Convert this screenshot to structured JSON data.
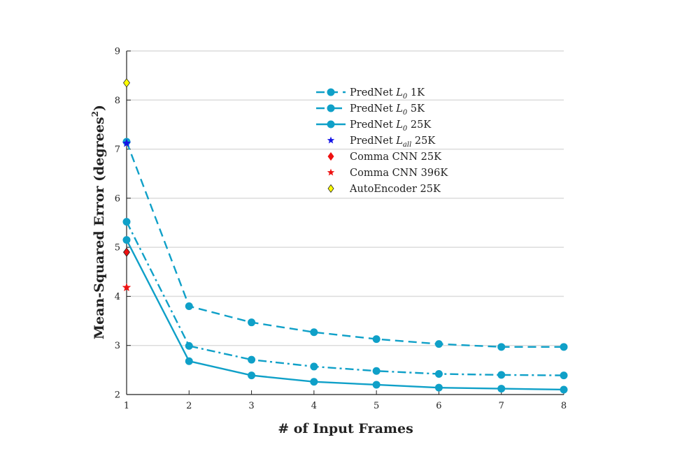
{
  "chart_data": {
    "type": "line",
    "xlabel": "# of Input Frames",
    "ylabel": "Mean-Squared Error (degrees",
    "ylabel_sup": "2",
    "ylabel_close": ")",
    "xlim": [
      1,
      8
    ],
    "ylim": [
      2,
      9
    ],
    "xticks": [
      1,
      2,
      3,
      4,
      5,
      6,
      7,
      8
    ],
    "yticks": [
      2,
      3,
      4,
      5,
      6,
      7,
      8,
      9
    ],
    "grid": "horizontal",
    "legend_position": "top-center",
    "colors": {
      "prednet": "#0fa0c8",
      "lall": "#1414e6",
      "comma": "#ee1111",
      "autoencoder": "#ffff00"
    },
    "series": [
      {
        "name": "PredNet",
        "name_math": "L",
        "name_sub": "0",
        "name_suffix": "1K",
        "line_style": "dashed",
        "x": [
          1,
          2,
          3,
          4,
          5,
          6,
          7,
          8
        ],
        "y": [
          7.15,
          3.8,
          3.47,
          3.27,
          3.13,
          3.03,
          2.97,
          2.97
        ]
      },
      {
        "name": "PredNet",
        "name_math": "L",
        "name_sub": "0",
        "name_suffix": "5K",
        "line_style": "dashdot",
        "x": [
          1,
          2,
          3,
          4,
          5,
          6,
          7,
          8
        ],
        "y": [
          5.52,
          2.99,
          2.71,
          2.57,
          2.48,
          2.42,
          2.4,
          2.39
        ]
      },
      {
        "name": "PredNet",
        "name_math": "L",
        "name_sub": "0",
        "name_suffix": "25K",
        "line_style": "solid",
        "x": [
          1,
          2,
          3,
          4,
          5,
          6,
          7,
          8
        ],
        "y": [
          5.15,
          2.68,
          2.39,
          2.26,
          2.2,
          2.14,
          2.12,
          2.1
        ]
      }
    ],
    "points": [
      {
        "name": "PredNet",
        "name_math": "L",
        "name_sub": "all",
        "name_suffix": "25K",
        "marker": "star",
        "color": "#1414e6",
        "x": 1,
        "y": 7.12
      },
      {
        "name": "Comma CNN 25K",
        "marker": "diamond",
        "color": "#ee1111",
        "x": 1,
        "y": 4.9
      },
      {
        "name": "Comma CNN 396K",
        "marker": "star",
        "color": "#ee1111",
        "x": 1,
        "y": 4.18
      },
      {
        "name": "AutoEncoder 25K",
        "marker": "diamond",
        "color": "#ffff00",
        "x": 1,
        "y": 8.35
      }
    ]
  }
}
